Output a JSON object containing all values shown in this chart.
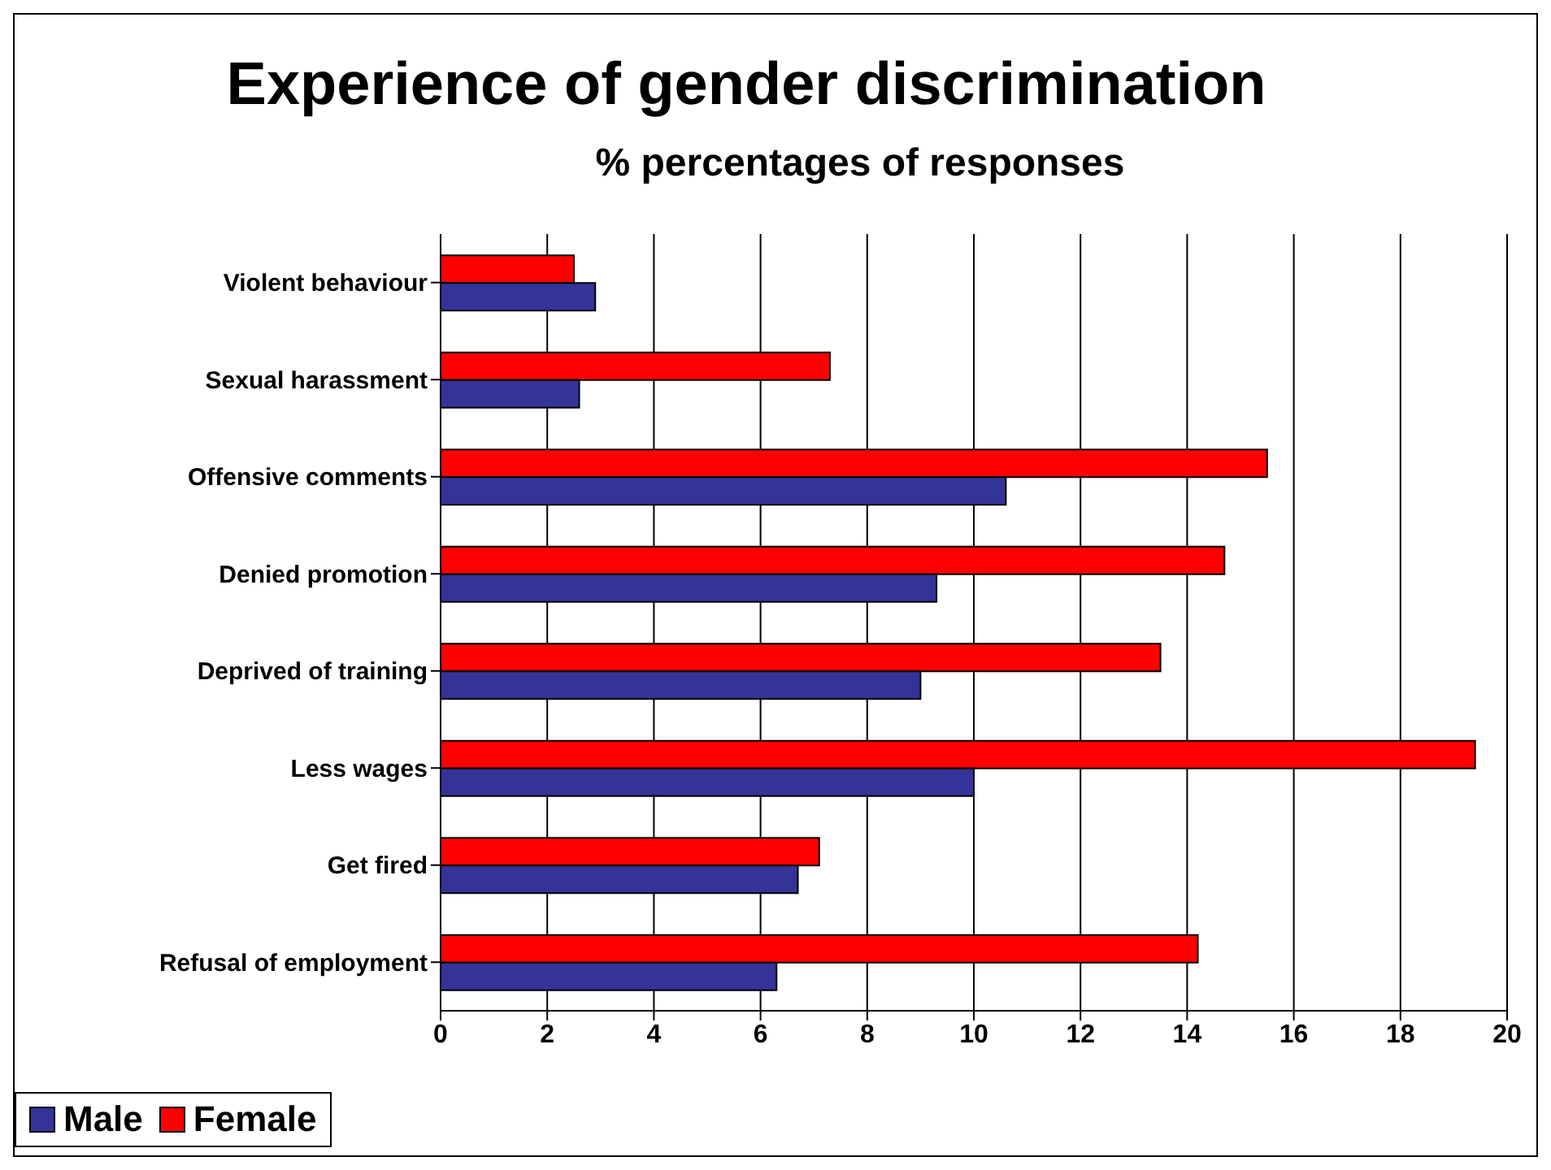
{
  "chart_data": {
    "type": "bar",
    "orientation": "horizontal",
    "title": "Experience of gender discrimination",
    "subtitle": "% percentages of responses",
    "categories": [
      "Violent behaviour",
      "Sexual harassment",
      "Offensive comments",
      "Denied promotion",
      "Deprived of training",
      "Less wages",
      "Get fired",
      "Refusal of employment"
    ],
    "series": [
      {
        "name": "Male",
        "color": "#333399",
        "values": [
          2.9,
          2.6,
          10.6,
          9.3,
          9.0,
          10.0,
          6.7,
          6.3
        ]
      },
      {
        "name": "Female",
        "color": "#ff0000",
        "values": [
          2.5,
          7.3,
          15.5,
          14.7,
          13.5,
          19.4,
          7.1,
          14.2
        ]
      }
    ],
    "xlim": [
      0,
      20
    ],
    "xticks": [
      0,
      2,
      4,
      6,
      8,
      10,
      12,
      14,
      16,
      18,
      20
    ],
    "grid": "x",
    "legend": "bottom"
  }
}
